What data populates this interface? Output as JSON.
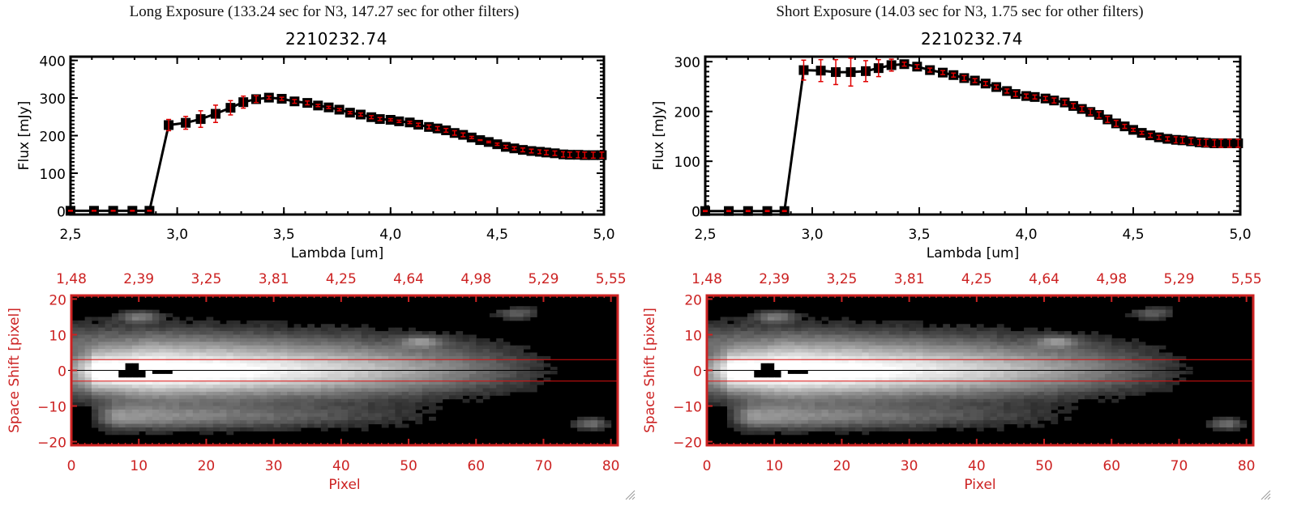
{
  "colors": {
    "axis_black": "#000000",
    "error_red": "#e00000",
    "image_axis_red": "#cc2222",
    "aperture_red": "#dd1111"
  },
  "panels": [
    {
      "id": "long",
      "title": "Long Exposure (133.24 sec for N3, 147.27 sec for other filters)",
      "object_id": "2210232.74"
    },
    {
      "id": "short",
      "title": "Short Exposure (14.03 sec for N3, 1.75 sec for other filters)",
      "object_id": "2210232.74"
    }
  ],
  "chart_data": [
    {
      "type": "line",
      "panel": "long",
      "title": "2210232.74",
      "xlabel": "Lambda [um]",
      "ylabel": "Flux [mJy]",
      "xlim": [
        2.5,
        5.0
      ],
      "ylim": [
        -10,
        410
      ],
      "xticks": [
        "2.5",
        "3.0",
        "3.5",
        "4.0",
        "4.5",
        "5.0"
      ],
      "xtick_values": [
        2.5,
        3.0,
        3.5,
        4.0,
        4.5,
        5.0
      ],
      "yticks": [
        "0",
        "100",
        "200",
        "300",
        "400"
      ],
      "ytick_values": [
        0,
        100,
        200,
        300,
        400
      ],
      "grid": false,
      "series": [
        {
          "name": "flux",
          "x": [
            2.5,
            2.61,
            2.7,
            2.79,
            2.87,
            2.96,
            3.04,
            3.11,
            3.18,
            3.25,
            3.31,
            3.37,
            3.43,
            3.49,
            3.55,
            3.61,
            3.66,
            3.71,
            3.76,
            3.81,
            3.86,
            3.91,
            3.95,
            4.0,
            4.04,
            4.09,
            4.13,
            4.18,
            4.22,
            4.26,
            4.3,
            4.34,
            4.38,
            4.42,
            4.46,
            4.5,
            4.54,
            4.58,
            4.62,
            4.66,
            4.7,
            4.73,
            4.77,
            4.81,
            4.84,
            4.88,
            4.91,
            4.95,
            4.99
          ],
          "y": [
            0,
            0,
            0,
            0,
            0,
            228,
            234,
            244,
            258,
            274,
            289,
            297,
            301,
            298,
            291,
            287,
            280,
            275,
            269,
            261,
            256,
            249,
            244,
            242,
            238,
            235,
            229,
            223,
            219,
            214,
            207,
            202,
            195,
            188,
            183,
            177,
            170,
            166,
            162,
            159,
            157,
            155,
            153,
            150,
            149,
            149,
            148,
            148,
            148
          ],
          "yerr": [
            1,
            1,
            1,
            1,
            1,
            15,
            17,
            22,
            23,
            19,
            16,
            9,
            4,
            4,
            5,
            5,
            3,
            3,
            3,
            3,
            4,
            4,
            4,
            3,
            3,
            3,
            4,
            5,
            5,
            5,
            6,
            5,
            3,
            1,
            2,
            3,
            4,
            4,
            5,
            5,
            5,
            6,
            6,
            7,
            7,
            8,
            8,
            8,
            8
          ]
        }
      ]
    },
    {
      "type": "line",
      "panel": "short",
      "title": "2210232.74",
      "xlabel": "Lambda [um]",
      "ylabel": "Flux [mJy]",
      "xlim": [
        2.5,
        5.0
      ],
      "ylim": [
        -7,
        310
      ],
      "xticks": [
        "2.5",
        "3.0",
        "3.5",
        "4.0",
        "4.5",
        "5.0"
      ],
      "xtick_values": [
        2.5,
        3.0,
        3.5,
        4.0,
        4.5,
        5.0
      ],
      "yticks": [
        "0",
        "100",
        "200",
        "300"
      ],
      "ytick_values": [
        0,
        100,
        200,
        300
      ],
      "grid": false,
      "series": [
        {
          "name": "flux",
          "x": [
            2.5,
            2.61,
            2.7,
            2.79,
            2.87,
            2.96,
            3.04,
            3.11,
            3.18,
            3.25,
            3.31,
            3.37,
            3.43,
            3.49,
            3.55,
            3.61,
            3.66,
            3.71,
            3.76,
            3.81,
            3.86,
            3.91,
            3.95,
            4.0,
            4.04,
            4.09,
            4.13,
            4.18,
            4.22,
            4.26,
            4.3,
            4.34,
            4.38,
            4.42,
            4.46,
            4.5,
            4.54,
            4.58,
            4.62,
            4.66,
            4.7,
            4.73,
            4.77,
            4.81,
            4.84,
            4.88,
            4.91,
            4.95,
            4.99
          ],
          "y": [
            0,
            0,
            0,
            0,
            0,
            283,
            282,
            279,
            279,
            281,
            287,
            293,
            295,
            290,
            283,
            278,
            273,
            267,
            262,
            256,
            249,
            241,
            235,
            231,
            229,
            226,
            222,
            218,
            211,
            205,
            199,
            193,
            184,
            176,
            170,
            163,
            157,
            152,
            148,
            145,
            143,
            142,
            140,
            138,
            137,
            136,
            136,
            136,
            136
          ],
          "yerr": [
            1,
            1,
            1,
            1,
            1,
            20,
            22,
            25,
            28,
            21,
            17,
            12,
            4,
            4,
            4,
            4,
            4,
            5,
            4,
            4,
            4,
            4,
            5,
            4,
            4,
            4,
            5,
            5,
            5,
            5,
            6,
            6,
            6,
            6,
            4,
            3,
            3,
            4,
            4,
            4,
            6,
            6,
            6,
            6,
            7,
            7,
            8,
            8,
            8
          ]
        }
      ]
    },
    {
      "type": "heatmap",
      "panel": "long",
      "xlabel": "Pixel",
      "ylabel": "Space Shift [pixel]",
      "xlim": [
        0,
        81
      ],
      "ylim": [
        -21,
        21
      ],
      "xticks": [
        "0",
        "10",
        "20",
        "30",
        "40",
        "50",
        "60",
        "70",
        "80"
      ],
      "xtick_values": [
        0,
        10,
        20,
        30,
        40,
        50,
        60,
        70,
        80
      ],
      "yticks": [
        "-20",
        "-10",
        "0",
        "10",
        "20"
      ],
      "ytick_values": [
        -20,
        -10,
        0,
        10,
        20
      ],
      "top_axis_label_values": [
        "1.48",
        "2.39",
        "3.25",
        "3.81",
        "4.25",
        "4.64",
        "4.98",
        "5.29",
        "5.55"
      ],
      "aperture_rows": [
        -3,
        3
      ],
      "center_row": 0
    },
    {
      "type": "heatmap",
      "panel": "short",
      "xlabel": "Pixel",
      "ylabel": "Space Shift [pixel]",
      "xlim": [
        0,
        81
      ],
      "ylim": [
        -21,
        21
      ],
      "xticks": [
        "0",
        "10",
        "20",
        "30",
        "40",
        "50",
        "60",
        "70",
        "80"
      ],
      "xtick_values": [
        0,
        10,
        20,
        30,
        40,
        50,
        60,
        70,
        80
      ],
      "yticks": [
        "-20",
        "-10",
        "0",
        "10",
        "20"
      ],
      "ytick_values": [
        -20,
        -10,
        0,
        10,
        20
      ],
      "top_axis_label_values": [
        "1.48",
        "2.39",
        "3.25",
        "3.81",
        "4.25",
        "4.64",
        "4.98",
        "5.29",
        "5.55"
      ],
      "aperture_rows": [
        -3,
        3
      ],
      "center_row": 0
    }
  ]
}
